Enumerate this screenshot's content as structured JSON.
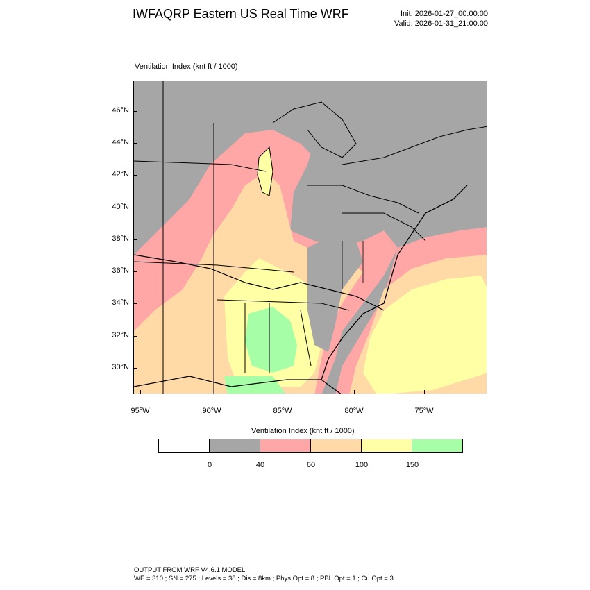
{
  "header": {
    "title": "IWFAQRP Eastern US Real Time WRF",
    "init": "Init: 2026-01-27_00:00:00",
    "valid": "Valid: 2026-01-31_21:00:00"
  },
  "plot": {
    "field_label": "Ventilation Index   (knt ft / 1000)"
  },
  "map": {
    "lat_labels": [
      "46°N",
      "44°N",
      "42°N",
      "40°N",
      "38°N",
      "36°N",
      "34°N",
      "32°N",
      "30°N"
    ],
    "lon_labels": [
      "95°W",
      "90°W",
      "85°W",
      "80°W",
      "75°W"
    ]
  },
  "colorbar": {
    "title": "Ventilation Index  (knt ft / 1000)",
    "colors": [
      "#ffffff",
      "#a6a6a6",
      "#ffa6a6",
      "#ffd9a6",
      "#ffffa6",
      "#a6ffa6"
    ],
    "labels": [
      "0",
      "40",
      "60",
      "100",
      "150"
    ]
  },
  "footer": {
    "line1": "OUTPUT FROM WRF V4.6.1 MODEL",
    "line2": "WE = 310 ; SN = 275 ; Levels = 38 ; Dis = 8km ; Phys Opt = 8 ; PBL Opt = 1 ; Cu Opt = 3"
  }
}
